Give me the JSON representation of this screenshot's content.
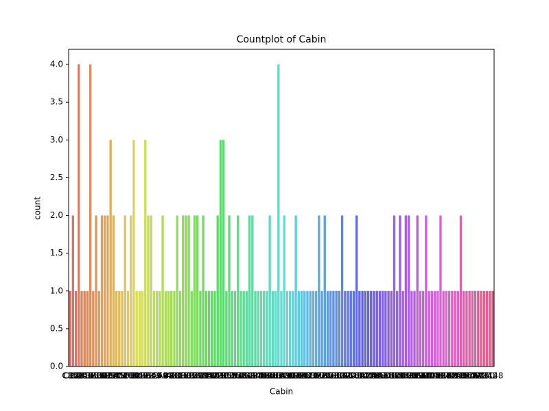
{
  "chart_data": {
    "type": "bar",
    "title": "Countplot of Cabin",
    "x_label": "Cabin",
    "y_label": "count",
    "palette": "husl",
    "categories": [
      "C85",
      "C123",
      "E46",
      "G6",
      "C103",
      "D56",
      "A6",
      "C23 C25 C27",
      "B78",
      "D33",
      "B30",
      "C52",
      "B28",
      "C83",
      "F33",
      "F G73",
      "E31",
      "A5",
      "D10 D12",
      "D26",
      "C110",
      "B58 B60",
      "E101",
      "F E69",
      "D47",
      "B86",
      "F2",
      "C2",
      "E33",
      "B19",
      "A7",
      "C49",
      "F4",
      "A32",
      "B4",
      "B80",
      "A31",
      "D36",
      "D15",
      "C93",
      "C78",
      "D35",
      "C87",
      "B77",
      "E67",
      "B94",
      "C125",
      "C99",
      "C118",
      "D7",
      "A19",
      "B49",
      "D",
      "C22 C26",
      "C106",
      "C65",
      "E36",
      "C54",
      "B57 B59 B63 B66",
      "C7",
      "E34",
      "C32",
      "B18",
      "C124",
      "C91",
      "E40",
      "T",
      "C128",
      "D37",
      "B35",
      "E50",
      "C82",
      "B96 B98",
      "E10",
      "E44",
      "A34",
      "C104",
      "C111",
      "C92",
      "E38",
      "D21",
      "E12",
      "E63",
      "A14",
      "B37",
      "C30",
      "D20",
      "B79",
      "E25",
      "D46",
      "B73",
      "C95",
      "B38",
      "B39",
      "B22",
      "C86",
      "C70",
      "A16",
      "C101",
      "C68",
      "A10",
      "E68",
      "B41",
      "A20",
      "D19",
      "D50",
      "D9",
      "A23",
      "B50",
      "A26",
      "D48",
      "E58",
      "C126",
      "B71",
      "B51 B53 B55",
      "D49",
      "B5",
      "B20",
      "F G63",
      "C62 C64",
      "E24",
      "C90",
      "C45",
      "E8",
      "B101",
      "D45",
      "C46",
      "D30",
      "E121",
      "D11",
      "E77",
      "F38",
      "B3",
      "D6",
      "B82 B84",
      "D17",
      "A36",
      "B102",
      "B69",
      "E49",
      "C47",
      "D28",
      "E17",
      "A24",
      "C50",
      "B42",
      "C148"
    ],
    "values": [
      1,
      2,
      1,
      4,
      1,
      1,
      1,
      4,
      1,
      2,
      1,
      2,
      2,
      2,
      3,
      2,
      1,
      1,
      1,
      2,
      1,
      2,
      3,
      1,
      1,
      1,
      3,
      2,
      2,
      1,
      1,
      1,
      2,
      1,
      1,
      1,
      1,
      2,
      1,
      2,
      2,
      2,
      1,
      2,
      2,
      1,
      2,
      1,
      1,
      1,
      1,
      2,
      3,
      3,
      1,
      2,
      1,
      1,
      2,
      1,
      1,
      1,
      2,
      2,
      1,
      1,
      1,
      1,
      1,
      2,
      1,
      1,
      4,
      1,
      2,
      1,
      1,
      1,
      2,
      1,
      1,
      1,
      1,
      1,
      1,
      1,
      2,
      1,
      2,
      1,
      1,
      1,
      1,
      1,
      2,
      1,
      1,
      1,
      1,
      2,
      1,
      1,
      1,
      1,
      1,
      1,
      1,
      1,
      1,
      1,
      1,
      1,
      2,
      1,
      2,
      1,
      2,
      2,
      1,
      1,
      2,
      1,
      1,
      2,
      1,
      1,
      1,
      1,
      2,
      1,
      1,
      1,
      1,
      1,
      1,
      2,
      1,
      1,
      1,
      1,
      1,
      1,
      1,
      1,
      1,
      1,
      1
    ],
    "ylim": [
      0,
      4.2
    ],
    "yticks": [
      {
        "value": 0,
        "label": "0.0"
      },
      {
        "value": 0.5,
        "label": "0.5"
      },
      {
        "value": 1,
        "label": "1.0"
      },
      {
        "value": 1.5,
        "label": "1.5"
      },
      {
        "value": 2,
        "label": "2.0"
      },
      {
        "value": 2.5,
        "label": "2.5"
      },
      {
        "value": 3,
        "label": "3.0"
      },
      {
        "value": 3.5,
        "label": "3.5"
      },
      {
        "value": 4,
        "label": "4.0"
      }
    ]
  }
}
